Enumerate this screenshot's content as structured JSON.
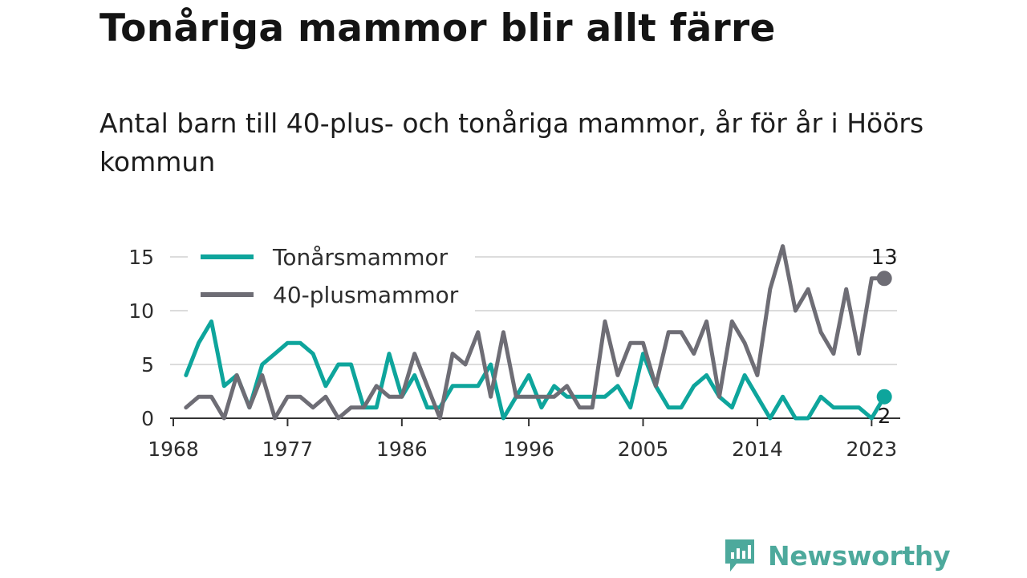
{
  "title": "Tonåriga mammor blir allt färre",
  "subtitle": "Antal barn till 40-plus- och tonåriga mammor, år för år i Höörs kommun",
  "logo": {
    "text": "Newsworthy",
    "icon": "newsworthy-logo-icon"
  },
  "colors": {
    "teen": "#0ea59c",
    "forty": "#6e6d75",
    "grid": "#dcdcdc",
    "axis": "#333333",
    "logo": "#4da99c"
  },
  "chart_data": {
    "type": "line",
    "title": "Tonåriga mammor blir allt färre",
    "xlabel": "",
    "ylabel": "",
    "xlim": [
      1968,
      2025
    ],
    "ylim": [
      0,
      16.5
    ],
    "x_ticks": [
      "1968",
      "1977",
      "1986",
      "1996",
      "2005",
      "2014",
      "2023"
    ],
    "y_ticks": [
      "0",
      "5",
      "10",
      "15"
    ],
    "grid": "horizontal",
    "legend_position": "top-left",
    "x": [
      1969,
      1970,
      1971,
      1972,
      1973,
      1974,
      1975,
      1976,
      1977,
      1978,
      1979,
      1980,
      1981,
      1982,
      1983,
      1984,
      1985,
      1986,
      1987,
      1988,
      1989,
      1990,
      1991,
      1992,
      1993,
      1994,
      1995,
      1996,
      1997,
      1998,
      1999,
      2000,
      2001,
      2002,
      2003,
      2004,
      2005,
      2006,
      2007,
      2008,
      2009,
      2010,
      2011,
      2012,
      2013,
      2014,
      2015,
      2016,
      2017,
      2018,
      2019,
      2020,
      2021,
      2022,
      2023,
      2024
    ],
    "series": [
      {
        "name": "Tonårsmammor",
        "color": "#0ea59c",
        "end_label": "2",
        "values": [
          4,
          7,
          9,
          3,
          4,
          1,
          5,
          6,
          7,
          7,
          6,
          3,
          5,
          5,
          1,
          1,
          6,
          2,
          4,
          1,
          1,
          3,
          3,
          3,
          5,
          0,
          2,
          4,
          1,
          3,
          2,
          2,
          2,
          2,
          3,
          1,
          6,
          3,
          1,
          1,
          3,
          4,
          2,
          1,
          4,
          2,
          0,
          2,
          0,
          0,
          2,
          1,
          1,
          1,
          0,
          2
        ]
      },
      {
        "name": "40-plusmammor",
        "color": "#6e6d75",
        "end_label": "13",
        "values": [
          1,
          2,
          2,
          0,
          4,
          1,
          4,
          0,
          2,
          2,
          1,
          2,
          0,
          1,
          1,
          3,
          2,
          2,
          6,
          3,
          0,
          6,
          5,
          8,
          2,
          8,
          2,
          2,
          2,
          2,
          3,
          1,
          1,
          9,
          4,
          7,
          7,
          3,
          8,
          8,
          6,
          9,
          2,
          9,
          7,
          4,
          12,
          16,
          10,
          12,
          8,
          6,
          12,
          6,
          13,
          13
        ]
      }
    ]
  }
}
